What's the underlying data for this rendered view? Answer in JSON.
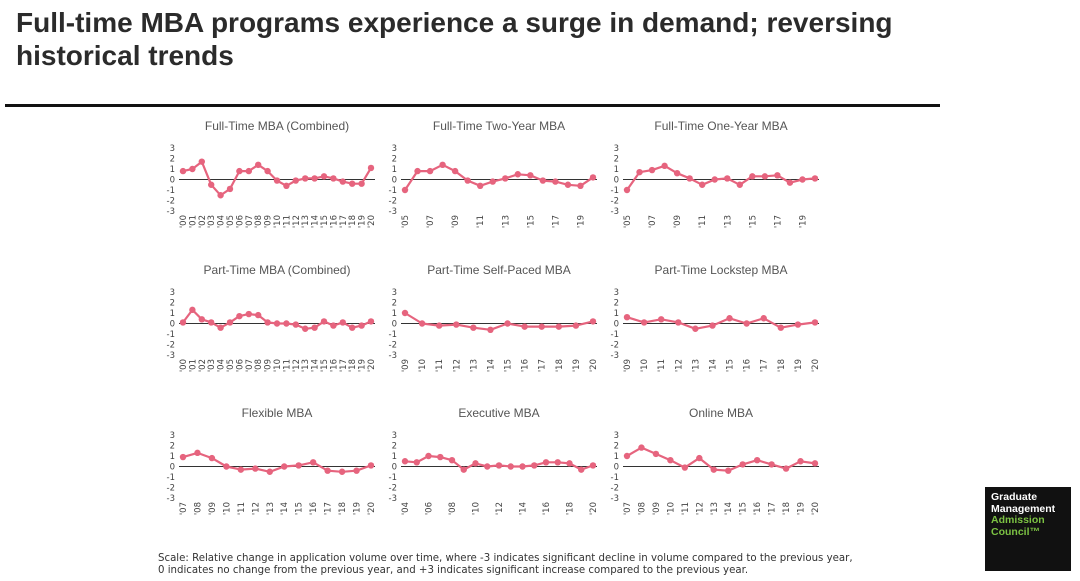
{
  "title": "Full-time MBA programs experience a surge in demand; reversing historical trends",
  "footnote": "Scale: Relative change in application volume over time, where -3 indicates significant decline in volume compared to the previous year, 0 indicates no change from the previous year, and +3 indicates significant increase compared to the previous year.",
  "logo": {
    "line1": "Graduate",
    "line2": "Management",
    "line3": "Admission",
    "line4": "Council™"
  },
  "colors": {
    "series": "#e6647e",
    "axis": "#333333"
  },
  "chart_data": [
    {
      "type": "line",
      "title": "Full-Time MBA (Combined)",
      "ylim": [
        -3,
        3
      ],
      "yticks": [
        "3",
        "2",
        "1",
        "0",
        "-1",
        "-2",
        "-3"
      ],
      "categories": [
        "'00",
        "'01",
        "'02",
        "'03",
        "'04",
        "'05",
        "'06",
        "'07",
        "'08",
        "'09",
        "'10",
        "'11",
        "'12",
        "'13",
        "'14",
        "'15",
        "'16",
        "'17",
        "'18",
        "'19",
        "'20"
      ],
      "tick_labels": [
        "'00",
        "'01",
        "'02",
        "'03",
        "'04",
        "'05",
        "'06",
        "'07",
        "'08",
        "'09",
        "'10",
        "'11",
        "'12",
        "'13",
        "'14",
        "'15",
        "'16",
        "'17",
        "'18",
        "'19",
        "'20"
      ],
      "values": [
        0.8,
        1.0,
        1.7,
        -0.5,
        -1.5,
        -0.9,
        0.8,
        0.8,
        1.4,
        0.8,
        -0.1,
        -0.6,
        -0.1,
        0.1,
        0.1,
        0.3,
        0.1,
        -0.2,
        -0.4,
        -0.4,
        1.1
      ]
    },
    {
      "type": "line",
      "title": "Full-Time Two-Year MBA",
      "ylim": [
        -3,
        3
      ],
      "yticks": [
        "3",
        "2",
        "1",
        "0",
        "-1",
        "-2",
        "-3"
      ],
      "categories": [
        "'05",
        "'06",
        "'07",
        "'08",
        "'09",
        "'10",
        "'11",
        "'12",
        "'13",
        "'14",
        "'15",
        "'16",
        "'17",
        "'18",
        "'19",
        "'20"
      ],
      "tick_labels": [
        "'05",
        "'07",
        "'09",
        "'11",
        "'13",
        "'15",
        "'17",
        "'19"
      ],
      "values": [
        -1.0,
        0.8,
        0.8,
        1.4,
        0.8,
        -0.1,
        -0.6,
        -0.2,
        0.1,
        0.5,
        0.4,
        -0.1,
        -0.2,
        -0.5,
        -0.6,
        0.2
      ]
    },
    {
      "type": "line",
      "title": "Full-Time One-Year MBA",
      "ylim": [
        -3,
        3
      ],
      "yticks": [
        "3",
        "2",
        "1",
        "0",
        "-1",
        "-2",
        "-3"
      ],
      "categories": [
        "'05",
        "'06",
        "'07",
        "'08",
        "'09",
        "'10",
        "'11",
        "'12",
        "'13",
        "'14",
        "'15",
        "'16",
        "'17",
        "'18",
        "'19",
        "'20"
      ],
      "tick_labels": [
        "'05",
        "'07",
        "'09",
        "'11",
        "'13",
        "'15",
        "'17",
        "'19"
      ],
      "values": [
        -1.0,
        0.7,
        0.9,
        1.3,
        0.6,
        0.1,
        -0.5,
        0.0,
        0.1,
        -0.5,
        0.3,
        0.3,
        0.4,
        -0.3,
        0.0,
        0.1
      ]
    },
    {
      "type": "line",
      "title": "Part-Time MBA (Combined)",
      "ylim": [
        -3,
        3
      ],
      "yticks": [
        "3",
        "2",
        "1",
        "0",
        "-1",
        "-2",
        "-3"
      ],
      "categories": [
        "'00",
        "'01",
        "'02",
        "'03",
        "'04",
        "'05",
        "'06",
        "'07",
        "'08",
        "'09",
        "'10",
        "'11",
        "'12",
        "'13",
        "'14",
        "'15",
        "'16",
        "'17",
        "'18",
        "'19",
        "'20"
      ],
      "tick_labels": [
        "'00",
        "'01",
        "'02",
        "'03",
        "'04",
        "'05",
        "'06",
        "'07",
        "'08",
        "'09",
        "'10",
        "'11",
        "'12",
        "'13",
        "'14",
        "'15",
        "'16",
        "'17",
        "'18",
        "'19",
        "'20"
      ],
      "values": [
        0.1,
        1.3,
        0.4,
        0.1,
        -0.4,
        0.1,
        0.7,
        0.9,
        0.8,
        0.1,
        0.0,
        0.0,
        -0.1,
        -0.5,
        -0.4,
        0.2,
        -0.2,
        0.1,
        -0.4,
        -0.2,
        0.2
      ]
    },
    {
      "type": "line",
      "title": "Part-Time Self-Paced MBA",
      "ylim": [
        -3,
        3
      ],
      "yticks": [
        "3",
        "2",
        "1",
        "0",
        "-1",
        "-2",
        "-3"
      ],
      "categories": [
        "'09",
        "'10",
        "'11",
        "'12",
        "'13",
        "'14",
        "'15",
        "'16",
        "'17",
        "'18",
        "'19",
        "'20"
      ],
      "tick_labels": [
        "'09",
        "'10",
        "'11",
        "'12",
        "'13",
        "'14",
        "'15",
        "'16",
        "'17",
        "'18",
        "'19",
        "'20"
      ],
      "values": [
        1.0,
        0.0,
        -0.2,
        -0.1,
        -0.4,
        -0.6,
        0.0,
        -0.3,
        -0.3,
        -0.3,
        -0.2,
        0.2
      ]
    },
    {
      "type": "line",
      "title": "Part-Time Lockstep MBA",
      "ylim": [
        -3,
        3
      ],
      "yticks": [
        "3",
        "2",
        "1",
        "0",
        "-1",
        "-2",
        "-3"
      ],
      "categories": [
        "'09",
        "'10",
        "'11",
        "'12",
        "'13",
        "'14",
        "'15",
        "'16",
        "'17",
        "'18",
        "'19",
        "'20"
      ],
      "tick_labels": [
        "'09",
        "'10",
        "'11",
        "'12",
        "'13",
        "'14",
        "'15",
        "'16",
        "'17",
        "'18",
        "'19",
        "'20"
      ],
      "values": [
        0.6,
        0.1,
        0.4,
        0.1,
        -0.5,
        -0.2,
        0.5,
        0.0,
        0.5,
        -0.4,
        -0.1,
        0.1
      ]
    },
    {
      "type": "line",
      "title": "Flexible MBA",
      "ylim": [
        -3,
        3
      ],
      "yticks": [
        "3",
        "2",
        "1",
        "0",
        "-1",
        "-2",
        "-3"
      ],
      "categories": [
        "'07",
        "'08",
        "'09",
        "'10",
        "'11",
        "'12",
        "'13",
        "'14",
        "'15",
        "'16",
        "'17",
        "'18",
        "'19",
        "'20"
      ],
      "tick_labels": [
        "'07",
        "'08",
        "'09",
        "'10",
        "'11",
        "'12",
        "'13",
        "'14",
        "'15",
        "'16",
        "'17",
        "'18",
        "'19",
        "'20"
      ],
      "values": [
        0.9,
        1.3,
        0.8,
        0.0,
        -0.3,
        -0.2,
        -0.5,
        0.0,
        0.1,
        0.4,
        -0.4,
        -0.5,
        -0.4,
        0.1
      ]
    },
    {
      "type": "line",
      "title": "Executive MBA",
      "ylim": [
        -3,
        3
      ],
      "yticks": [
        "3",
        "2",
        "1",
        "0",
        "-1",
        "-2",
        "-3"
      ],
      "categories": [
        "'04",
        "'05",
        "'06",
        "'07",
        "'08",
        "'09",
        "'10",
        "'11",
        "'12",
        "'13",
        "'14",
        "'15",
        "'16",
        "'17",
        "'18",
        "'19",
        "'20"
      ],
      "tick_labels": [
        "'04",
        "'06",
        "'08",
        "'10",
        "'12",
        "'14",
        "'16",
        "'18",
        "'20"
      ],
      "values": [
        0.5,
        0.4,
        1.0,
        0.9,
        0.6,
        -0.3,
        0.3,
        0.0,
        0.1,
        0.0,
        0.0,
        0.1,
        0.4,
        0.4,
        0.3,
        -0.3,
        0.1
      ]
    },
    {
      "type": "line",
      "title": "Online MBA",
      "ylim": [
        -3,
        3
      ],
      "yticks": [
        "3",
        "2",
        "1",
        "0",
        "-1",
        "-2",
        "-3"
      ],
      "categories": [
        "'07",
        "'08",
        "'09",
        "'10",
        "'11",
        "'12",
        "'13",
        "'14",
        "'15",
        "'16",
        "'17",
        "'18",
        "'19",
        "'20"
      ],
      "tick_labels": [
        "'07",
        "'08",
        "'09",
        "'10",
        "'11",
        "'12",
        "'13",
        "'14",
        "'15",
        "'16",
        "'17",
        "'18",
        "'19",
        "'20"
      ],
      "values": [
        1.0,
        1.8,
        1.2,
        0.6,
        -0.1,
        0.8,
        -0.3,
        -0.4,
        0.2,
        0.6,
        0.2,
        -0.2,
        0.5,
        0.3
      ]
    }
  ]
}
